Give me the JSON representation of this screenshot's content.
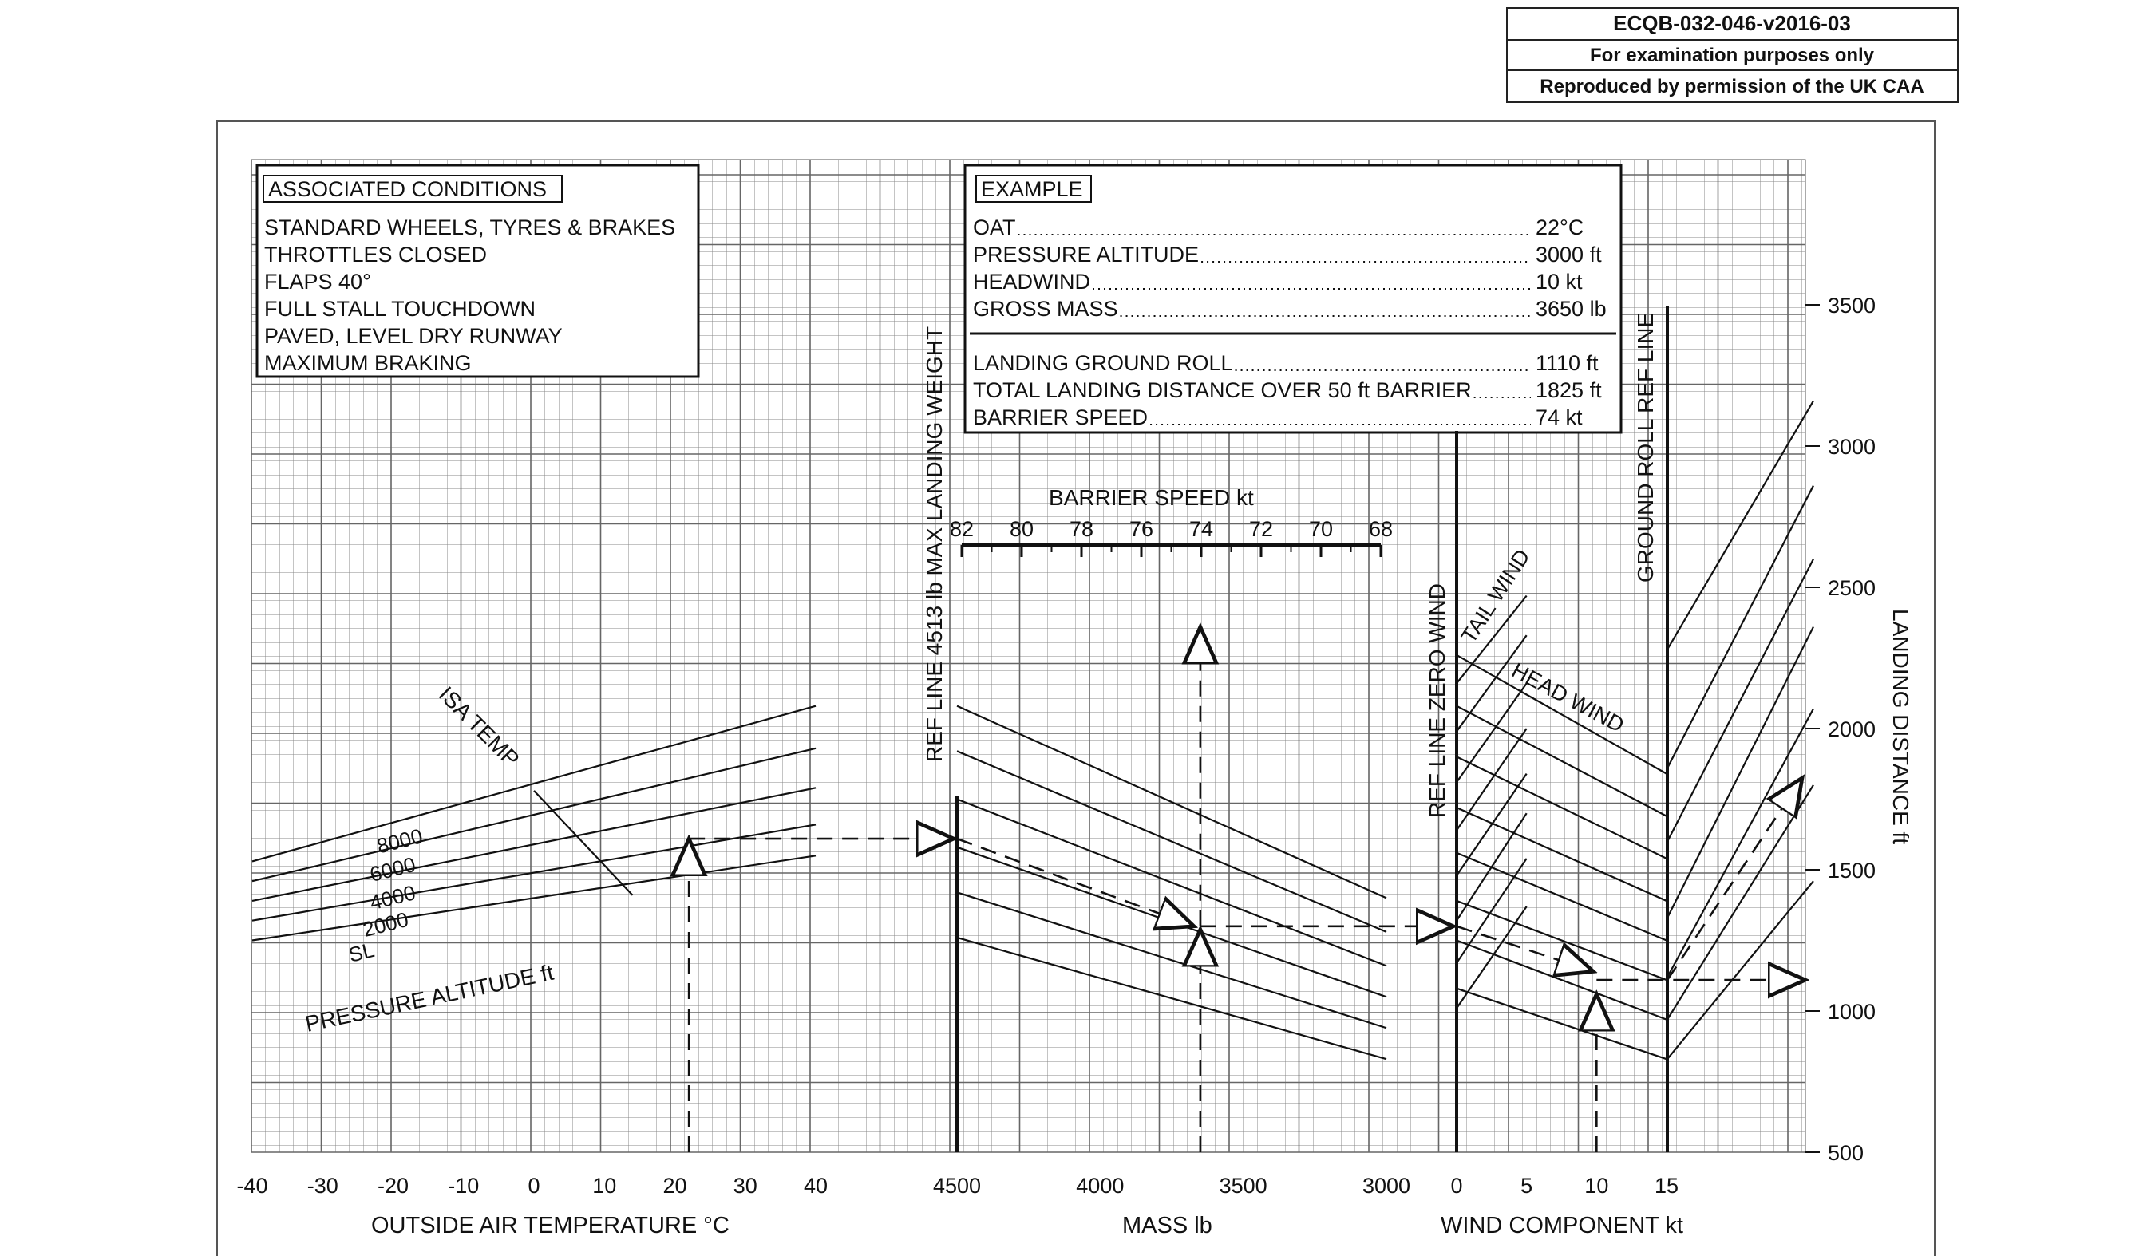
{
  "header": {
    "code": "ECQB-032-046-v2016-03",
    "line2": "For examination purposes only",
    "line3": "Reproduced by permission of the UK CAA"
  },
  "associated_conditions": {
    "title": "ASSOCIATED CONDITIONS",
    "items": [
      "STANDARD WHEELS, TYRES & BRAKES",
      "THROTTLES CLOSED",
      "FLAPS  40°",
      "FULL STALL TOUCHDOWN",
      "PAVED, LEVEL DRY RUNWAY",
      "MAXIMUM BRAKING"
    ]
  },
  "example": {
    "title": "EXAMPLE",
    "rows": [
      {
        "label": "OAT",
        "value": "22°C"
      },
      {
        "label": "PRESSURE ALTITUDE",
        "value": "3000 ft"
      },
      {
        "label": "HEADWIND",
        "value": "10 kt"
      },
      {
        "label": "GROSS MASS",
        "value": "3650 lb"
      }
    ],
    "results": [
      {
        "label": "LANDING GROUND ROLL",
        "value": "1110 ft"
      },
      {
        "label": "TOTAL LANDING DISTANCE OVER 50 ft BARRIER",
        "value": "1825 ft"
      },
      {
        "label": "BARRIER SPEED",
        "value": "74 kt"
      }
    ]
  },
  "labels": {
    "isa_temp": "ISA TEMP",
    "pressure_altitude": "PRESSURE ALTITUDE  ft",
    "ref_line_mass": "REF LINE  4513 lb MAX LANDING WEIGHT",
    "ref_line_wind": "REF LINE  ZERO WIND",
    "ground_roll_ref": "GROUND ROLL REF LINE",
    "tail_wind": "TAIL WIND",
    "head_wind": "HEAD WIND",
    "barrier_speed": "BARRIER SPEED  kt",
    "landing_distance": "LANDING DISTANCE  ft",
    "oat_axis": "OUTSIDE AIR TEMPERATURE  °C",
    "mass_axis": "MASS  lb",
    "wind_axis": "WIND COMPONENT  kt"
  },
  "chart_data": {
    "type": "line",
    "title": "",
    "panels": [
      {
        "name": "temperature",
        "xlabel": "OUTSIDE AIR TEMPERATURE  °C",
        "ticks": [
          -40,
          -30,
          -20,
          -10,
          0,
          10,
          20,
          30,
          40
        ],
        "xlim": [
          -40,
          40
        ],
        "series": [
          {
            "name": "8000",
            "points": [
              [
                -40,
                1530
              ],
              [
                40,
                2080
              ]
            ]
          },
          {
            "name": "6000",
            "points": [
              [
                -40,
                1460
              ],
              [
                40,
                1930
              ]
            ]
          },
          {
            "name": "4000",
            "points": [
              [
                -40,
                1390
              ],
              [
                40,
                1790
              ]
            ]
          },
          {
            "name": "2000",
            "points": [
              [
                -40,
                1320
              ],
              [
                40,
                1660
              ]
            ]
          },
          {
            "name": "SL",
            "points": [
              [
                -40,
                1250
              ],
              [
                40,
                1550
              ]
            ]
          }
        ],
        "isa_line": [
          [
            0,
            1780
          ],
          [
            14,
            1410
          ]
        ],
        "altitude_labels": [
          "8000",
          "6000",
          "4000",
          "2000",
          "SL"
        ]
      },
      {
        "name": "mass",
        "xlabel": "MASS  lb",
        "ticks": [
          4500,
          4000,
          3500,
          3000
        ],
        "xlim": [
          4500,
          3000
        ],
        "guide_lines": [
          [
            [
              4500,
              2080
            ],
            [
              3000,
              1400
            ]
          ],
          [
            [
              4500,
              1920
            ],
            [
              3000,
              1280
            ]
          ],
          [
            [
              4500,
              1750
            ],
            [
              3000,
              1160
            ]
          ],
          [
            [
              4500,
              1580
            ],
            [
              3000,
              1050
            ]
          ],
          [
            [
              4500,
              1420
            ],
            [
              3000,
              940
            ]
          ],
          [
            [
              4500,
              1260
            ],
            [
              3000,
              830
            ]
          ]
        ],
        "barrier_speed_ticks": [
          82,
          80,
          78,
          76,
          74,
          72,
          70,
          68
        ]
      },
      {
        "name": "wind",
        "xlabel": "WIND COMPONENT  kt",
        "ticks": [
          0,
          5,
          10,
          15
        ],
        "xlim": [
          0,
          15
        ],
        "headwind_lines": [
          [
            [
              0,
              2260
            ],
            [
              15,
              1840
            ]
          ],
          [
            [
              0,
              2080
            ],
            [
              15,
              1690
            ]
          ],
          [
            [
              0,
              1900
            ],
            [
              15,
              1540
            ]
          ],
          [
            [
              0,
              1720
            ],
            [
              15,
              1390
            ]
          ],
          [
            [
              0,
              1560
            ],
            [
              15,
              1250
            ]
          ],
          [
            [
              0,
              1390
            ],
            [
              15,
              1110
            ]
          ],
          [
            [
              0,
              1250
            ],
            [
              15,
              970
            ]
          ],
          [
            [
              0,
              1080
            ],
            [
              15,
              830
            ]
          ]
        ],
        "tailwind_lines": [
          [
            [
              0,
              2160
            ],
            [
              5,
              2470
            ]
          ],
          [
            [
              0,
              1990
            ],
            [
              5,
              2330
            ]
          ],
          [
            [
              0,
              1810
            ],
            [
              5,
              2160
            ]
          ],
          [
            [
              0,
              1640
            ],
            [
              5,
              2000
            ]
          ],
          [
            [
              0,
              1480
            ],
            [
              5,
              1840
            ]
          ],
          [
            [
              0,
              1320
            ],
            [
              5,
              1700
            ]
          ],
          [
            [
              0,
              1170
            ],
            [
              5,
              1540
            ]
          ],
          [
            [
              0,
              1010
            ],
            [
              5,
              1370
            ]
          ]
        ]
      },
      {
        "name": "landing_distance",
        "ylabel": "LANDING DISTANCE  ft",
        "ticks": [
          500,
          1000,
          1500,
          2000,
          2500,
          3000,
          3500
        ],
        "ylim": [
          500,
          3500
        ],
        "guide_lines": [
          [
            [
              0,
              2280
            ],
            [
              1,
              3160
            ]
          ],
          [
            [
              0,
              1860
            ],
            [
              1,
              2860
            ]
          ],
          [
            [
              0,
              1600
            ],
            [
              1,
              2600
            ]
          ],
          [
            [
              0,
              1330
            ],
            [
              1,
              2360
            ]
          ],
          [
            [
              0,
              1120
            ],
            [
              1,
              2070
            ]
          ],
          [
            [
              0,
              970
            ],
            [
              1,
              1800
            ]
          ],
          [
            [
              0,
              830
            ],
            [
              1,
              1460
            ]
          ]
        ]
      }
    ],
    "example_path": {
      "oat": 22,
      "pressure_altitude": 3000,
      "gross_mass": 3650,
      "headwind": 10,
      "barrier_speed": 74,
      "ground_roll": 1110,
      "total_distance": 1825
    }
  }
}
